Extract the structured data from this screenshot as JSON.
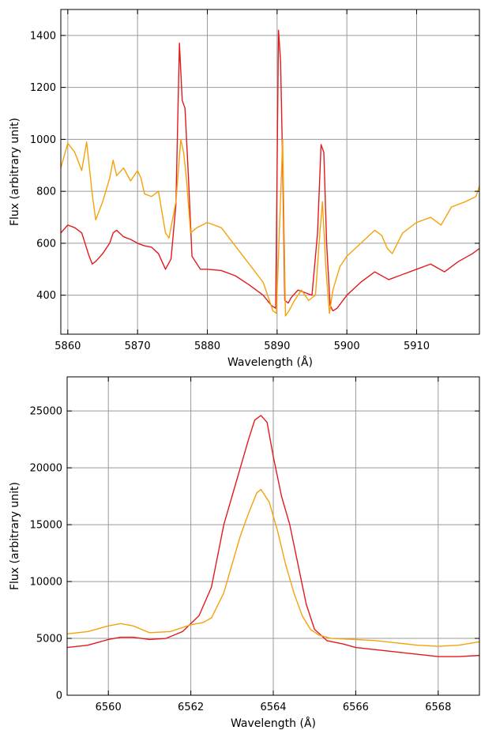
{
  "chart_data": [
    {
      "type": "line",
      "xlabel": "Wavelength (Å)",
      "ylabel": "Flux (arbitrary unit)",
      "xlim": [
        5859,
        5919
      ],
      "ylim": [
        250,
        1500
      ],
      "xticks": [
        5860,
        5870,
        5880,
        5890,
        5900,
        5910
      ],
      "xtick_labels": [
        "5860",
        "5870",
        "5880",
        "5890",
        "5900",
        "5910"
      ],
      "yticks": [
        400,
        600,
        800,
        1000,
        1200,
        1400
      ],
      "ytick_labels": [
        "400",
        "600",
        "800",
        "1000",
        "1200",
        "1400"
      ],
      "grid": true,
      "legend": "none",
      "series": [
        {
          "color": "#e31a1c",
          "x": [
            5859,
            5860,
            5861,
            5862,
            5863,
            5863.5,
            5864,
            5865,
            5866,
            5866.5,
            5867,
            5868,
            5869,
            5870,
            5871,
            5872,
            5873,
            5874,
            5874.8,
            5875.5,
            5876,
            5876.4,
            5876.8,
            5877.3,
            5877.8,
            5879,
            5880,
            5882,
            5884,
            5886,
            5888,
            5889.2,
            5889.8,
            5890.2,
            5890.5,
            5890.8,
            5891.1,
            5891.6,
            5892,
            5893,
            5894,
            5895,
            5895.8,
            5896.3,
            5896.7,
            5897.1,
            5897.6,
            5898,
            5898.6,
            5900,
            5902,
            5904,
            5906,
            5908,
            5910,
            5912,
            5914,
            5916,
            5918,
            5919
          ],
          "y": [
            640,
            670,
            660,
            640,
            555,
            520,
            530,
            560,
            600,
            640,
            650,
            625,
            615,
            600,
            590,
            585,
            560,
            500,
            540,
            750,
            1370,
            1150,
            1120,
            850,
            550,
            500,
            500,
            495,
            475,
            440,
            400,
            360,
            350,
            1420,
            1300,
            900,
            380,
            370,
            390,
            420,
            410,
            400,
            640,
            980,
            950,
            600,
            360,
            340,
            350,
            400,
            450,
            490,
            460,
            480,
            500,
            520,
            490,
            530,
            560,
            580
          ]
        },
        {
          "color": "#f5a20a",
          "x": [
            5859,
            5860,
            5861,
            5862,
            5862.7,
            5863.5,
            5864,
            5865,
            5866,
            5866.5,
            5867,
            5868,
            5869,
            5870,
            5870.5,
            5871,
            5872,
            5873,
            5874,
            5874.5,
            5875.5,
            5876.2,
            5876.6,
            5877,
            5877.6,
            5878.5,
            5880,
            5882,
            5884,
            5886,
            5888,
            5889.4,
            5889.9,
            5890.4,
            5890.8,
            5891.2,
            5891.7,
            5892.5,
            5893.5,
            5894.5,
            5895.5,
            5896.1,
            5896.5,
            5897,
            5897.5,
            5898,
            5899,
            5900,
            5902,
            5904,
            5905,
            5905.8,
            5906.5,
            5908,
            5910,
            5912,
            5913.5,
            5915,
            5917,
            5918.5,
            5919
          ],
          "y": [
            890,
            985,
            950,
            880,
            990,
            790,
            690,
            760,
            850,
            920,
            860,
            890,
            840,
            880,
            850,
            790,
            780,
            800,
            640,
            620,
            760,
            1000,
            950,
            850,
            640,
            660,
            680,
            660,
            590,
            520,
            450,
            340,
            330,
            700,
            1000,
            320,
            340,
            380,
            420,
            380,
            400,
            630,
            760,
            500,
            330,
            420,
            510,
            550,
            600,
            650,
            630,
            580,
            560,
            640,
            680,
            700,
            670,
            740,
            760,
            780,
            820
          ]
        }
      ]
    },
    {
      "type": "line",
      "xlabel": "Wavelength (Å)",
      "ylabel": "Flux (arbitrary unit)",
      "xlim": [
        6559,
        6569
      ],
      "ylim": [
        0,
        28000
      ],
      "xticks": [
        6560,
        6562,
        6564,
        6566,
        6568
      ],
      "xtick_labels": [
        "6560",
        "6562",
        "6564",
        "6566",
        "6568"
      ],
      "yticks": [
        0,
        5000,
        10000,
        15000,
        20000,
        25000
      ],
      "ytick_labels": [
        "0",
        "5000",
        "10000",
        "15000",
        "20000",
        "25000"
      ],
      "grid": true,
      "legend": "none",
      "series": [
        {
          "color": "#e31a1c",
          "x": [
            6559,
            6559.5,
            6560,
            6560.3,
            6560.6,
            6561,
            6561.4,
            6561.8,
            6562.2,
            6562.5,
            6562.8,
            6563,
            6563.2,
            6563.4,
            6563.55,
            6563.7,
            6563.85,
            6564,
            6564.2,
            6564.4,
            6564.6,
            6564.8,
            6565,
            6565.3,
            6565.7,
            6566,
            6566.5,
            6567,
            6567.5,
            6568,
            6568.5,
            6569
          ],
          "y": [
            4200,
            4400,
            4900,
            5100,
            5100,
            4900,
            5000,
            5600,
            7000,
            9500,
            15000,
            17500,
            20000,
            22500,
            24200,
            24600,
            24000,
            21000,
            17500,
            15000,
            11500,
            8000,
            5800,
            4800,
            4500,
            4200,
            4000,
            3800,
            3600,
            3400,
            3400,
            3500
          ]
        },
        {
          "color": "#f5a20a",
          "x": [
            6559,
            6559.5,
            6560,
            6560.3,
            6560.6,
            6561,
            6561.5,
            6562,
            6562.3,
            6562.5,
            6562.8,
            6563,
            6563.2,
            6563.4,
            6563.6,
            6563.7,
            6563.9,
            6564.1,
            6564.3,
            6564.5,
            6564.7,
            6564.9,
            6565.1,
            6565.4,
            6566,
            6566.5,
            6567,
            6567.5,
            6568,
            6568.5,
            6569
          ],
          "y": [
            5400,
            5600,
            6100,
            6300,
            6100,
            5500,
            5600,
            6200,
            6400,
            6800,
            9000,
            11500,
            14000,
            16000,
            17800,
            18100,
            17000,
            14500,
            11500,
            9000,
            7000,
            5800,
            5300,
            5000,
            4900,
            4800,
            4600,
            4400,
            4300,
            4400,
            4700
          ]
        }
      ]
    }
  ]
}
